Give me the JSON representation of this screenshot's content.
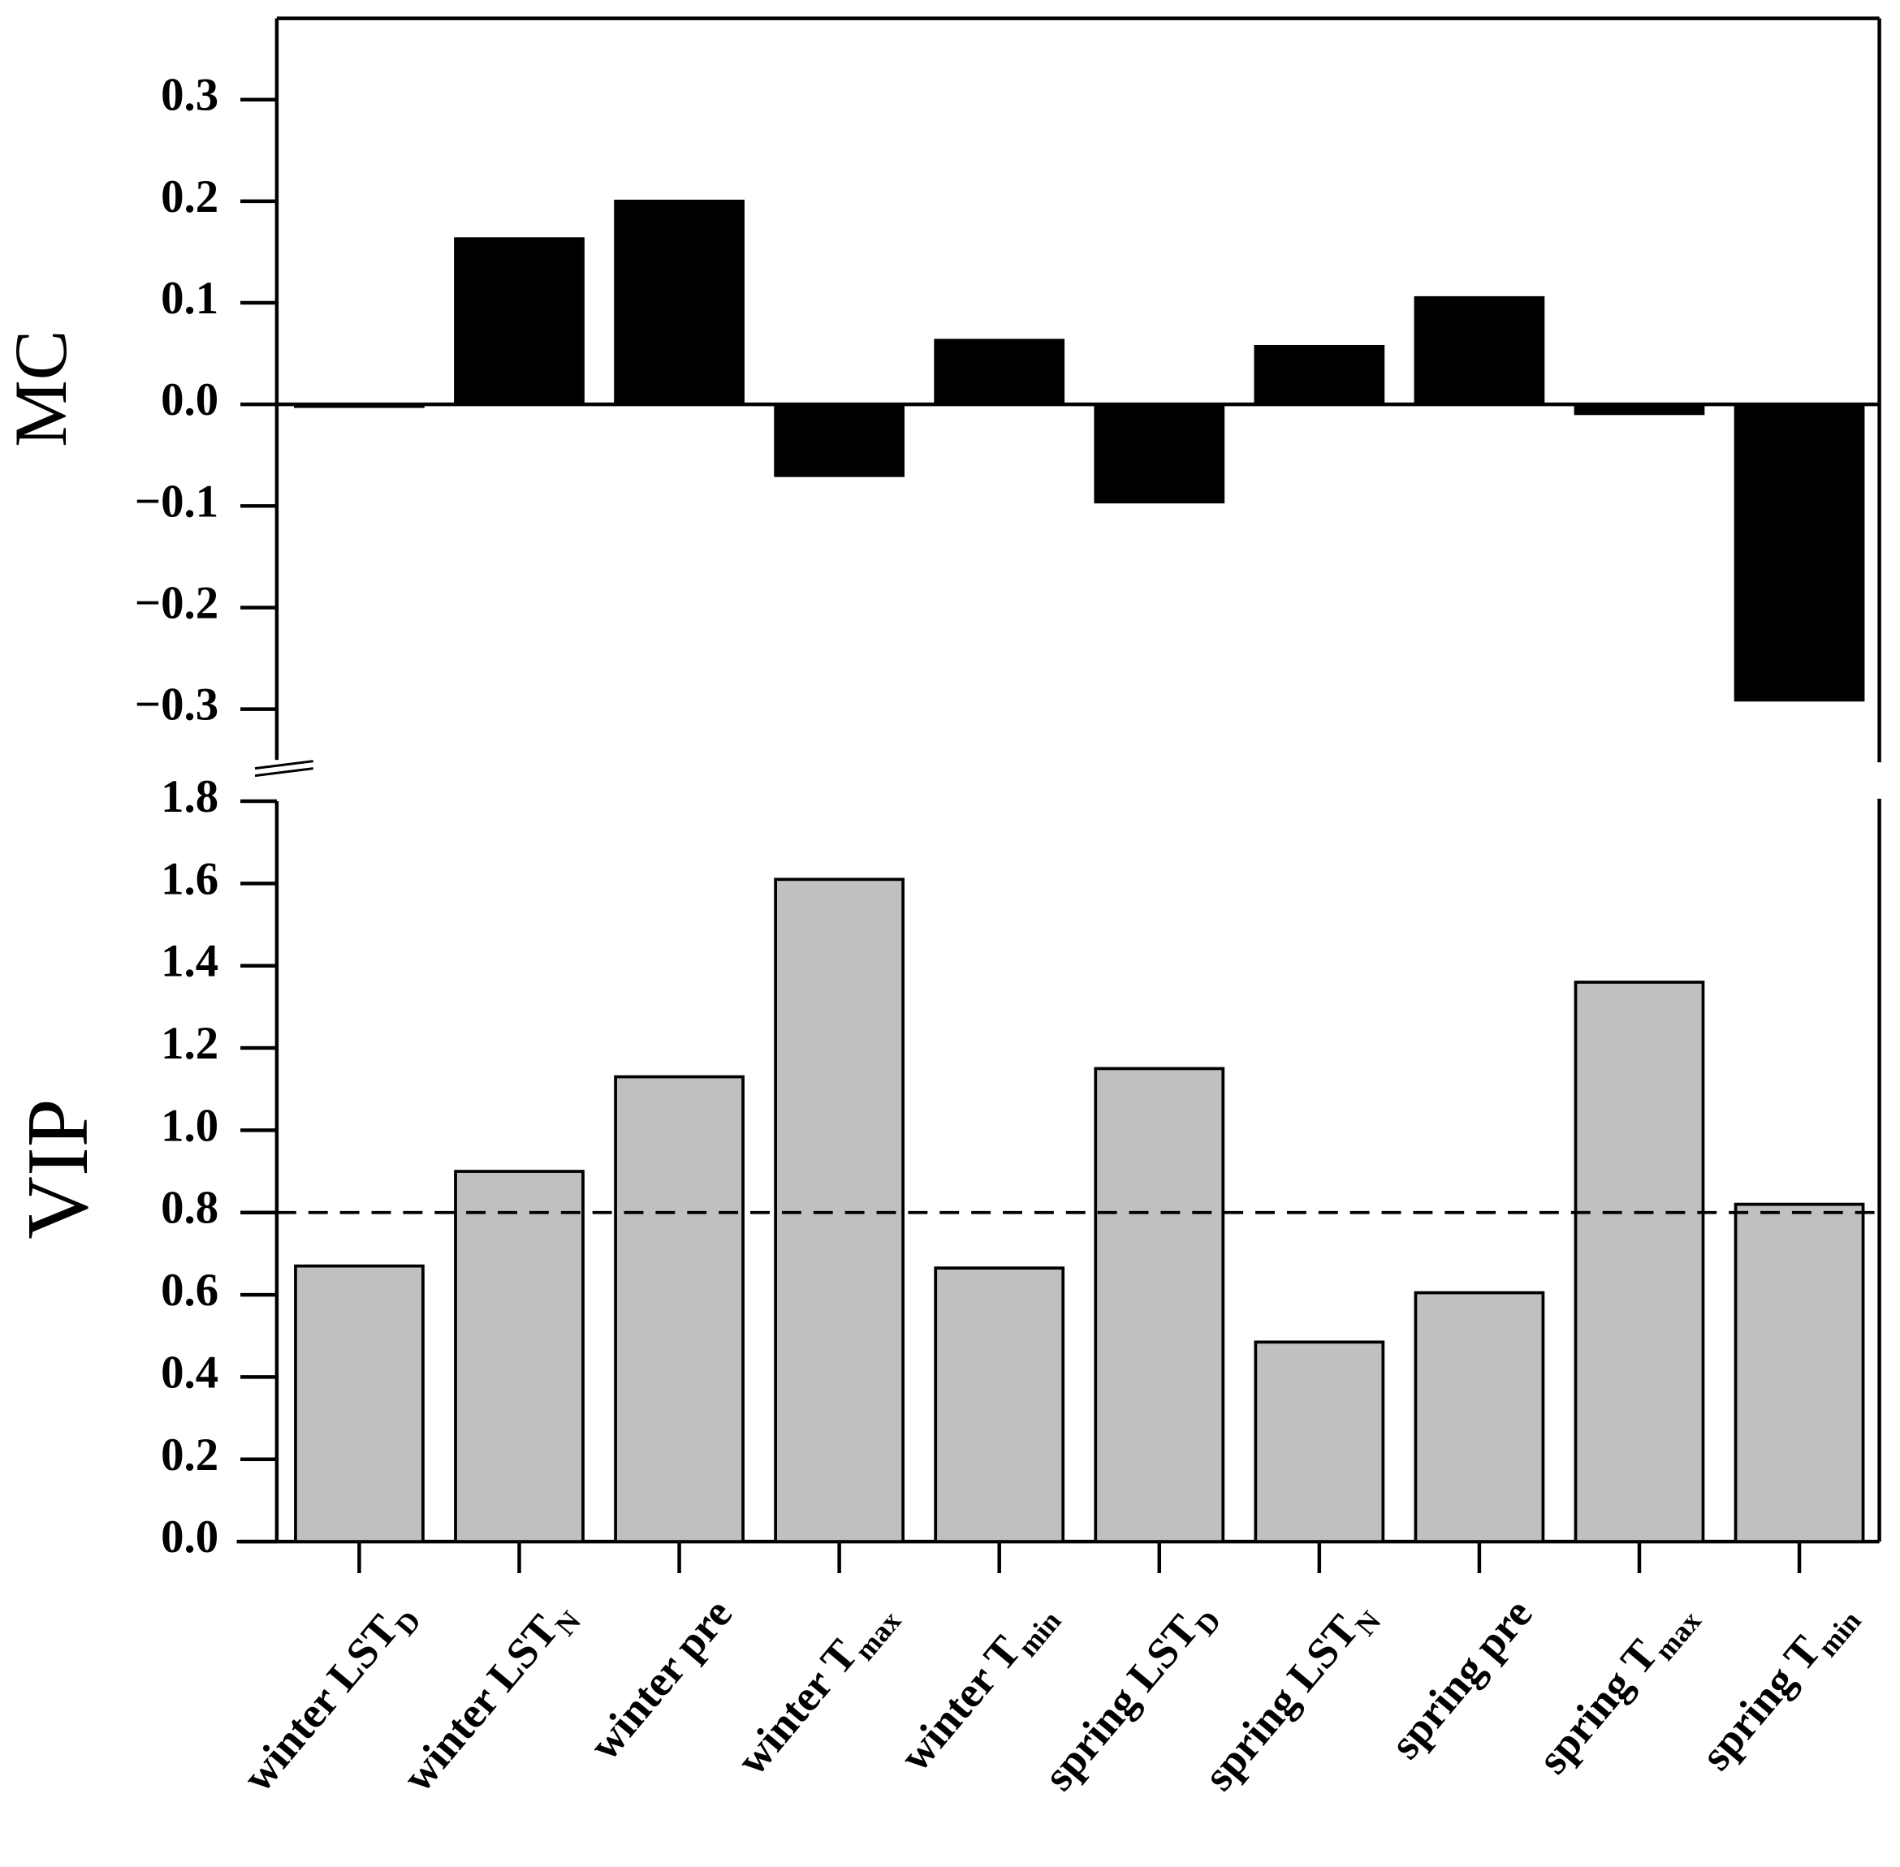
{
  "chart_data": [
    {
      "type": "bar",
      "ylabel": "MC",
      "color": "#000000",
      "values": [
        -0.002,
        0.163,
        0.2,
        -0.07,
        0.063,
        -0.096,
        0.057,
        0.105,
        -0.009,
        -0.291
      ],
      "ylim": [
        -0.35,
        0.38
      ],
      "yticks": [
        -0.3,
        -0.2,
        -0.1,
        0.0,
        0.1,
        0.2,
        0.3
      ]
    },
    {
      "type": "bar",
      "ylabel": "VIP",
      "color": "#c0c0c0",
      "categories": [
        "winter LST",
        "winter LST",
        "winter pre",
        "winter T",
        "winter T",
        "spring LST",
        "spring LST",
        "spring pre",
        "spring T",
        "spring T"
      ],
      "category_subscripts": [
        "D",
        "N",
        null,
        "max",
        "min",
        "D",
        "N",
        null,
        "max",
        "min"
      ],
      "values": [
        0.67,
        0.9,
        1.13,
        1.61,
        0.665,
        1.15,
        0.485,
        0.605,
        1.36,
        0.82
      ],
      "threshold": 0.8,
      "ylim": [
        0,
        1.8
      ],
      "yticks": [
        0.0,
        0.2,
        0.4,
        0.6,
        0.8,
        1.0,
        1.2,
        1.4,
        1.6,
        1.8
      ]
    }
  ]
}
